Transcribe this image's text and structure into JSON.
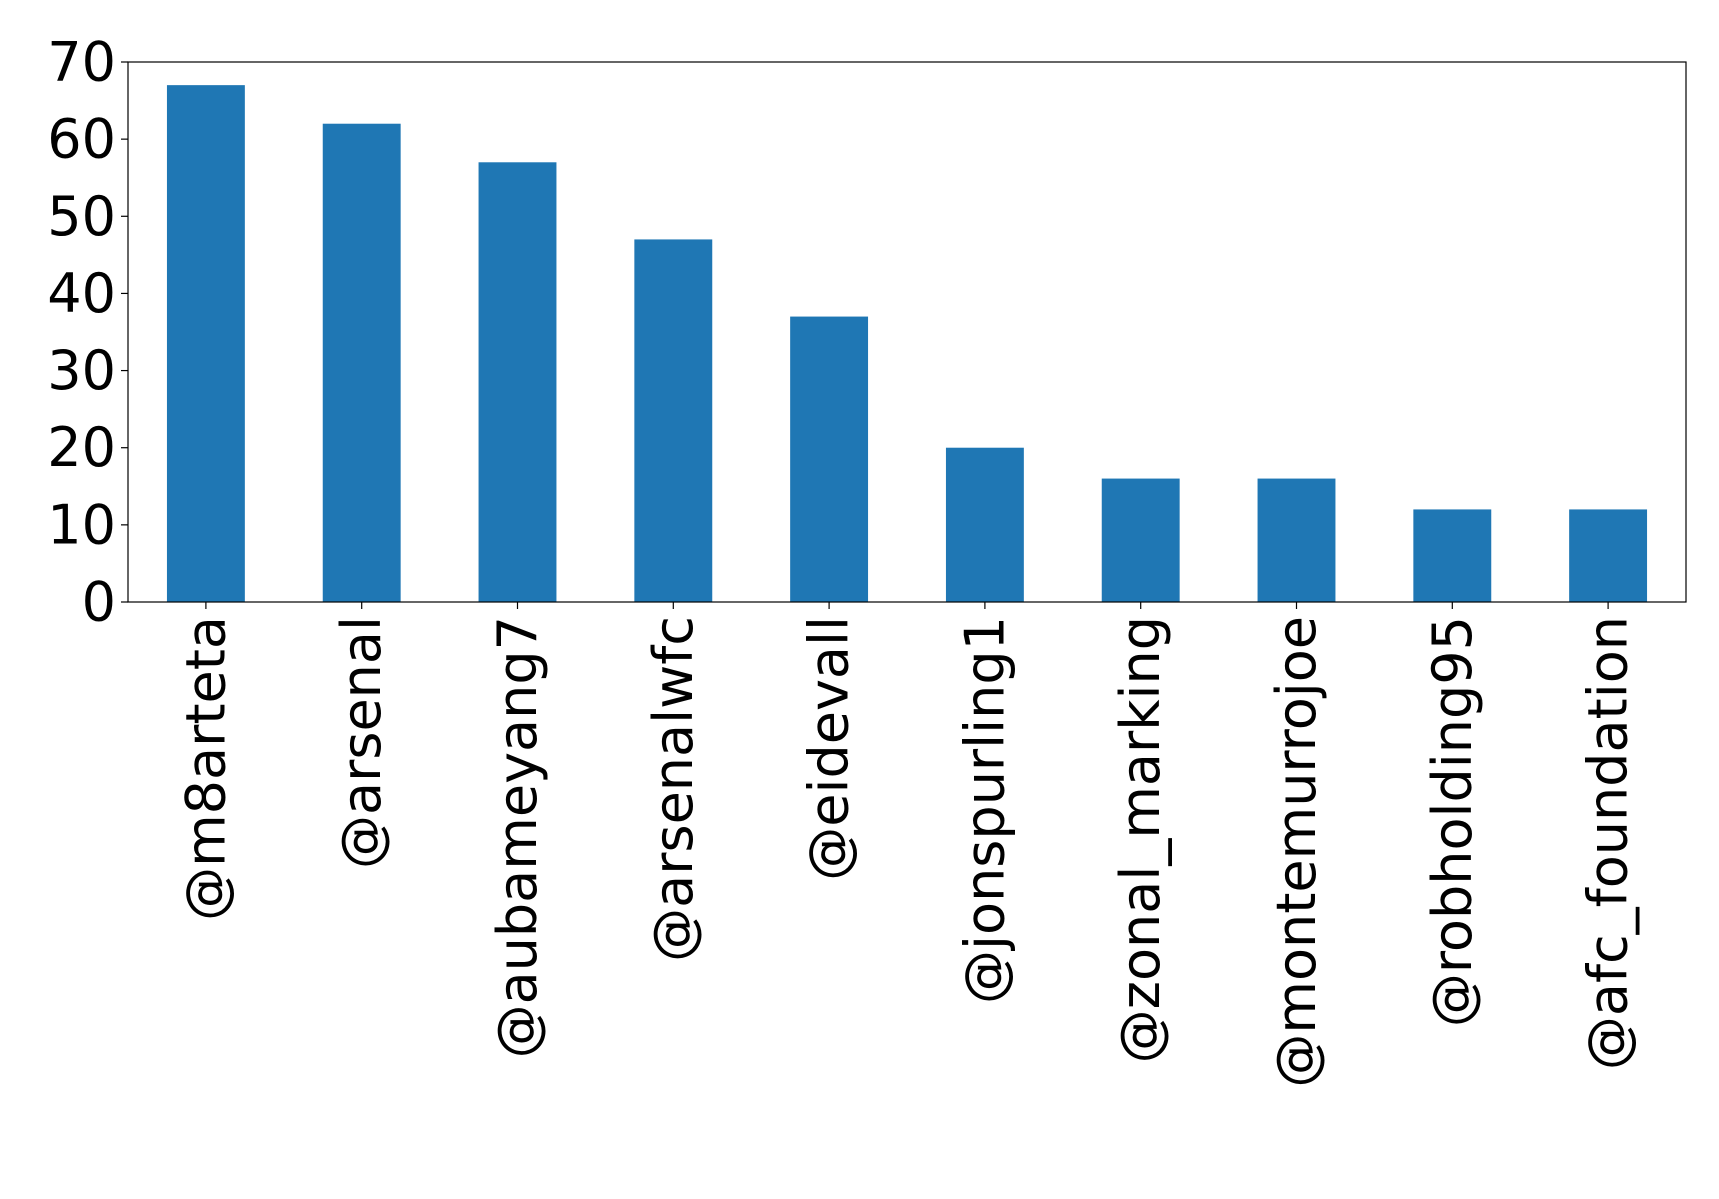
{
  "chart_data": {
    "type": "bar",
    "title": "",
    "xlabel": "",
    "ylabel": "",
    "categories": [
      "@m8arteta",
      "@arsenal",
      "@aubameyang7",
      "@arsenalwfc",
      "@eidevall",
      "@jonspurling1",
      "@zonal_marking",
      "@montemurrojoe",
      "@robholding95",
      "@afc_foundation"
    ],
    "values": [
      67,
      62,
      57,
      47,
      37,
      20,
      16,
      16,
      12,
      12
    ],
    "ylim": [
      0,
      70
    ],
    "yticks": [
      "0",
      "10",
      "20",
      "30",
      "40",
      "50",
      "60",
      "70"
    ],
    "grid": false,
    "legend": "none",
    "bar_color": "#1f77b4"
  }
}
